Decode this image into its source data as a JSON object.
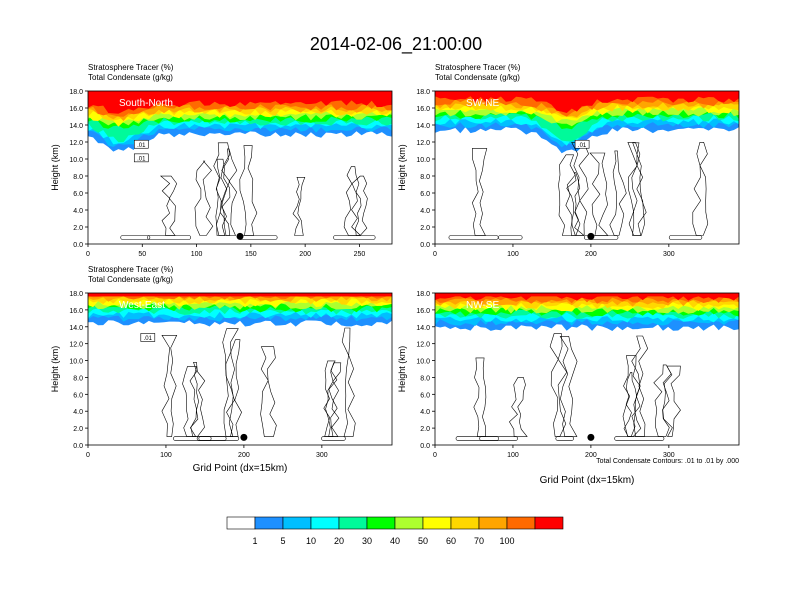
{
  "figure": {
    "title": "2014-02-06_21:00:00",
    "contour_note": "Total Condensate Contours: .01 to .01 by .000",
    "colorbar": {
      "labels": [
        "1",
        "5",
        "10",
        "20",
        "30",
        "40",
        "50",
        "60",
        "70",
        "100"
      ],
      "colors": [
        "#ffffff",
        "#1e90ff",
        "#00bfff",
        "#00ffff",
        "#00fa9a",
        "#00ff00",
        "#adff2f",
        "#ffff00",
        "#ffd700",
        "#ffa500",
        "#ff6a00",
        "#ff0000"
      ]
    }
  },
  "chart_data": [
    {
      "type": "heatmap",
      "panel": "South-North",
      "title": "Stratosphere Tracer   (%)",
      "subtitle": "Total Condensate   (g/kg)",
      "xlabel": "",
      "ylabel": "Height (km)",
      "xlim": [
        0,
        280
      ],
      "ylim": [
        0,
        18
      ],
      "xticks": [
        "0",
        "50",
        "100",
        "150",
        "200",
        "250"
      ],
      "yticks": [
        "0.0",
        "2.0",
        "4.0",
        "6.0",
        "8.0",
        "10.0",
        "12.0",
        "14.0",
        "16.0",
        "18.0"
      ],
      "contour_labels": [
        ".01",
        ".01"
      ],
      "marker_x": 140,
      "tracer_base_km": 13.5,
      "tracer_dip": {
        "x": 30,
        "km": 11.5
      }
    },
    {
      "type": "heatmap",
      "panel": "SW-NE",
      "title": "Stratosphere Tracer   (%)",
      "subtitle": "Total Condensate   (g/kg)",
      "xlabel": "",
      "ylabel": "Height (km)",
      "xlim": [
        0,
        390
      ],
      "ylim": [
        0,
        18
      ],
      "xticks": [
        "0",
        "100",
        "200",
        "300"
      ],
      "yticks": [
        "0.0",
        "2.0",
        "4.0",
        "6.0",
        "8.0",
        "10.0",
        "12.0",
        "14.0",
        "16.0",
        "18.0"
      ],
      "contour_labels": [
        ".01"
      ],
      "marker_x": 200,
      "tracer_base_km": 14.0,
      "tracer_dip": {
        "x": 170,
        "km": 11.5
      }
    },
    {
      "type": "heatmap",
      "panel": "West-East",
      "title": "Stratosphere Tracer   (%)",
      "subtitle": "Total Condensate   (g/kg)",
      "xlabel": "Grid Point (dx=15km)",
      "ylabel": "Height (km)",
      "xlim": [
        0,
        390
      ],
      "ylim": [
        0,
        18
      ],
      "xticks": [
        "0",
        "100",
        "200",
        "300"
      ],
      "yticks": [
        "0.0",
        "2.0",
        "4.0",
        "6.0",
        "8.0",
        "10.0",
        "12.0",
        "14.0",
        "16.0",
        "18.0"
      ],
      "contour_labels": [
        ".01"
      ],
      "marker_x": 200,
      "tracer_base_km": 15.0,
      "tracer_dip": null
    },
    {
      "type": "heatmap",
      "panel": "NW-SE",
      "title": "",
      "subtitle": "",
      "xlabel": "Grid Point (dx=15km)",
      "ylabel": "Height (km)",
      "xlim": [
        0,
        390
      ],
      "ylim": [
        0,
        18
      ],
      "xticks": [
        "0",
        "100",
        "200",
        "300"
      ],
      "yticks": [
        "0.0",
        "2.0",
        "4.0",
        "6.0",
        "8.0",
        "10.0",
        "12.0",
        "14.0",
        "16.0",
        "18.0"
      ],
      "contour_labels": [],
      "marker_x": 200,
      "tracer_base_km": 14.5,
      "tracer_dip": null
    }
  ]
}
